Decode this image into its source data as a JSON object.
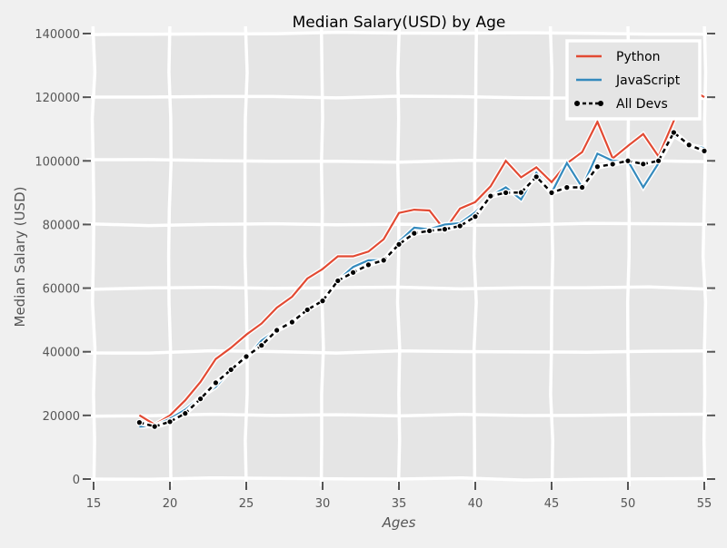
{
  "chart_data": {
    "type": "line",
    "title": "Median Salary(USD) by Age",
    "xlabel": "Ages",
    "ylabel": "Median Salary (USD)",
    "xlim": [
      15,
      55
    ],
    "ylim": [
      0,
      140000
    ],
    "xticks": [
      15,
      20,
      25,
      30,
      35,
      40,
      45,
      50,
      55
    ],
    "yticks": [
      0,
      20000,
      40000,
      60000,
      80000,
      100000,
      120000,
      140000
    ],
    "grid": true,
    "legend_position": "top-right",
    "x": [
      18,
      19,
      20,
      21,
      22,
      23,
      24,
      25,
      26,
      27,
      28,
      29,
      30,
      31,
      32,
      33,
      34,
      35,
      36,
      37,
      38,
      39,
      40,
      41,
      42,
      43,
      44,
      45,
      46,
      47,
      48,
      49,
      50,
      51,
      52,
      53,
      54,
      55
    ],
    "series": [
      {
        "name": "Python",
        "color": "#e24a33",
        "style": "solid",
        "values": [
          20046,
          17100,
          20000,
          24744,
          30500,
          37732,
          41247,
          45372,
          48876,
          53850,
          57287,
          63016,
          65998,
          70003,
          70000,
          71496,
          75370,
          83640,
          84666,
          84392,
          78254,
          85000,
          87038,
          91991,
          100000,
          94796,
          97962,
          93302,
          99240,
          102736,
          112285,
          100771,
          104708,
          108423,
          101407,
          112542,
          122870,
          120000
        ]
      },
      {
        "name": "JavaScript",
        "color": "#348abd",
        "style": "solid",
        "values": [
          16446,
          16791,
          18942,
          21780,
          25704,
          29000,
          34372,
          37810,
          43515,
          46823,
          49293,
          53437,
          56373,
          62375,
          66674,
          68745,
          68746,
          74583,
          79000,
          78508,
          79996,
          80403,
          83820,
          88833,
          91660,
          87892,
          96243,
          90000,
          99313,
          91660,
          102264,
          100000,
          100000,
          91660,
          99240,
          108000,
          105000,
          104000
        ]
      },
      {
        "name": "All Devs",
        "color": "#000000",
        "style": "dotted-markers",
        "values": [
          17784,
          16500,
          18012,
          20628,
          25206,
          30252,
          34368,
          38496,
          42000,
          46752,
          49320,
          53200,
          56000,
          62316,
          64928,
          67317,
          68748,
          73752,
          77232,
          78000,
          78508,
          79536,
          82488,
          88935,
          90000,
          90056,
          95000,
          90000,
          91633,
          91660,
          98150,
          98964,
          100000,
          98988,
          100000,
          108923,
          105000,
          103117
        ]
      }
    ]
  }
}
